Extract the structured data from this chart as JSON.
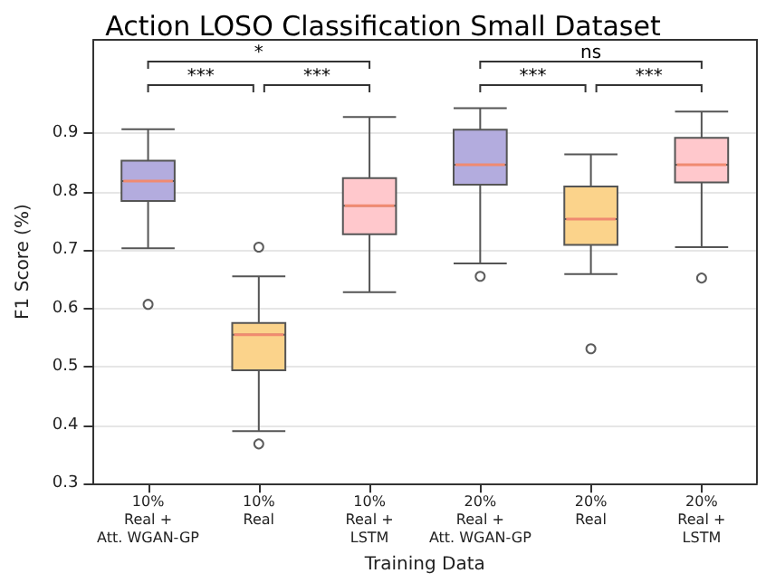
{
  "chart_data": {
    "type": "box",
    "title": "Action LOSO Classification Small Dataset",
    "xlabel": "Training Data",
    "ylabel": "F1 Score (%)",
    "categories": [
      "10%\nReal +\nAtt. WGAN-GP",
      "10%\nReal",
      "10%\nReal +\nLSTM",
      "20%\nReal +\nAtt. WGAN-GP",
      "20%\nReal",
      "20%\nReal +\nLSTM"
    ],
    "boxes": [
      {
        "low": 0.703,
        "q1": 0.784,
        "median": 0.818,
        "q3": 0.853,
        "high": 0.907,
        "outliers": [
          0.607
        ]
      },
      {
        "low": 0.39,
        "q1": 0.494,
        "median": 0.555,
        "q3": 0.575,
        "high": 0.655,
        "outliers": [
          0.705,
          0.368
        ]
      },
      {
        "low": 0.628,
        "q1": 0.727,
        "median": 0.776,
        "q3": 0.823,
        "high": 0.928
      },
      {
        "low": 0.677,
        "q1": 0.812,
        "median": 0.846,
        "q3": 0.906,
        "high": 0.943,
        "outliers": [
          0.655
        ]
      },
      {
        "low": 0.659,
        "q1": 0.709,
        "median": 0.753,
        "q3": 0.809,
        "high": 0.864,
        "outliers": [
          0.531
        ]
      },
      {
        "low": 0.705,
        "q1": 0.816,
        "median": 0.846,
        "q3": 0.892,
        "high": 0.937,
        "outliers": [
          0.652
        ]
      }
    ],
    "colors": [
      "#b3acde",
      "#fbd38b",
      "#ffc8cc",
      "#b3acde",
      "#fbd38b",
      "#ffc8cc"
    ],
    "ylim": [
      0.3,
      1.06
    ],
    "yticks": [
      0.3,
      0.4,
      0.5,
      0.6,
      0.7,
      0.8,
      0.9
    ],
    "grid": "y",
    "annotations": [
      "*",
      "ns",
      "***",
      "***",
      "***",
      "***"
    ]
  }
}
